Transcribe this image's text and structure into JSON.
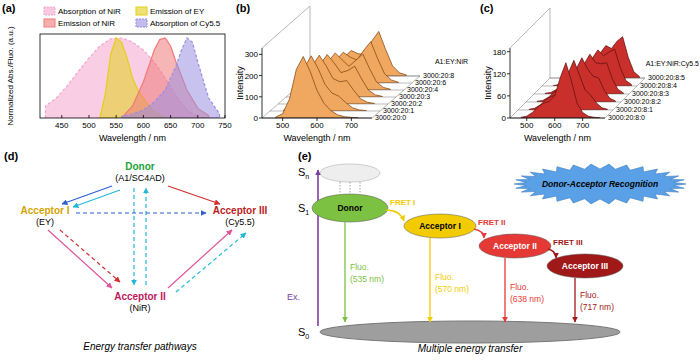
{
  "chart_data": [
    {
      "type": "area",
      "title": "(a)",
      "x_label": "Wavelength / nm",
      "y_label": "Normalized Abs./Fluo. (a.u.)",
      "xlim": [
        410,
        750
      ],
      "xticks": [
        450,
        500,
        550,
        600,
        650,
        700,
        750
      ],
      "ylim": [
        0,
        1.05
      ],
      "tick_labels": "x",
      "legend": "top-left",
      "series": [
        {
          "name": "Absorption of NiR",
          "color": "#f4a6cf",
          "line_style": "dashed",
          "x": [
            420,
            440,
            460,
            480,
            500,
            520,
            540,
            560,
            580,
            600,
            620,
            640,
            660,
            680,
            700
          ],
          "values": [
            0.15,
            0.25,
            0.4,
            0.58,
            0.75,
            0.9,
            0.99,
            1.0,
            0.95,
            0.85,
            0.7,
            0.5,
            0.28,
            0.1,
            0.02
          ]
        },
        {
          "name": "Emission of EY",
          "color": "#e3cf1c",
          "line_style": "solid",
          "x": [
            520,
            530,
            540,
            550,
            560,
            570,
            580,
            590,
            600,
            610,
            620,
            640
          ],
          "values": [
            0.0,
            0.3,
            0.8,
            1.0,
            0.95,
            0.75,
            0.5,
            0.35,
            0.25,
            0.15,
            0.08,
            0.0
          ]
        },
        {
          "name": "Emission of NiR",
          "color": "#ef7a7a",
          "line_style": "solid",
          "x": [
            560,
            580,
            600,
            620,
            630,
            640,
            650,
            660,
            680,
            700,
            720
          ],
          "values": [
            0.0,
            0.15,
            0.45,
            0.85,
            0.98,
            1.0,
            0.9,
            0.7,
            0.35,
            0.12,
            0.03
          ]
        },
        {
          "name": "Absorption of Cy5.5",
          "color": "#9a8fe0",
          "line_style": "dashed",
          "x": [
            560,
            580,
            600,
            620,
            640,
            660,
            670,
            680,
            690,
            700,
            720,
            740
          ],
          "values": [
            0.02,
            0.05,
            0.1,
            0.2,
            0.35,
            0.65,
            0.85,
            1.0,
            0.95,
            0.7,
            0.25,
            0.05
          ]
        }
      ]
    },
    {
      "type": "waterfall",
      "title": "(b)",
      "x_label": "Wavelength / nm",
      "y_label": "Intensity",
      "series_axis_label": "A1:EY:NiR",
      "color": "#f0a860",
      "xlim": [
        440,
        760
      ],
      "xticks": [
        500,
        600,
        700
      ],
      "ylim": [
        0,
        330
      ],
      "yticks": [
        0,
        100,
        200,
        300
      ],
      "x": [
        480,
        500,
        520,
        540,
        560,
        580,
        600,
        620,
        640,
        660,
        680,
        700,
        720
      ],
      "series": [
        {
          "name": "3000:20:0",
          "values": [
            5,
            20,
            90,
            230,
            290,
            220,
            130,
            70,
            35,
            15,
            6,
            3,
            1
          ]
        },
        {
          "name": "3000:20:1",
          "values": [
            5,
            18,
            80,
            205,
            260,
            200,
            125,
            85,
            70,
            40,
            15,
            5,
            2
          ]
        },
        {
          "name": "3000:20:2",
          "values": [
            4,
            16,
            70,
            180,
            230,
            180,
            120,
            105,
            110,
            65,
            25,
            8,
            3
          ]
        },
        {
          "name": "3000:20:3",
          "values": [
            4,
            14,
            60,
            155,
            200,
            160,
            115,
            125,
            145,
            85,
            32,
            10,
            3
          ]
        },
        {
          "name": "3000:20:4",
          "values": [
            3,
            12,
            52,
            135,
            175,
            142,
            112,
            140,
            170,
            100,
            38,
            12,
            4
          ]
        },
        {
          "name": "3000:20:6",
          "values": [
            3,
            10,
            42,
            110,
            145,
            122,
            108,
            155,
            195,
            115,
            44,
            14,
            4
          ]
        },
        {
          "name": "3000:20:8",
          "values": [
            2,
            8,
            35,
            90,
            120,
            105,
            102,
            165,
            210,
            125,
            48,
            15,
            5
          ]
        }
      ]
    },
    {
      "type": "waterfall",
      "title": "(c)",
      "x_label": "Wavelength / nm",
      "y_label": "Intensity",
      "series_axis_label": "A1:EY:NiR:Cy5.5",
      "color": "#c9302c",
      "xlim": [
        440,
        780
      ],
      "xticks": [
        500,
        600,
        700
      ],
      "ylim": [
        0,
        190
      ],
      "yticks": [
        0,
        60,
        120,
        180
      ],
      "x": [
        480,
        500,
        520,
        540,
        560,
        580,
        600,
        620,
        640,
        660,
        680,
        700,
        720,
        740,
        760
      ],
      "series": [
        {
          "name": "3000:20:8:0",
          "values": [
            2,
            5,
            15,
            30,
            40,
            45,
            60,
            110,
            150,
            100,
            40,
            15,
            5,
            2,
            1
          ]
        },
        {
          "name": "3000:20:8:1",
          "values": [
            2,
            5,
            14,
            28,
            37,
            42,
            55,
            100,
            135,
            95,
            55,
            40,
            20,
            6,
            2
          ]
        },
        {
          "name": "3000:20:8:2",
          "values": [
            2,
            4,
            13,
            26,
            34,
            39,
            50,
            90,
            120,
            90,
            70,
            65,
            32,
            10,
            3
          ]
        },
        {
          "name": "3000:20:8:3",
          "values": [
            2,
            4,
            12,
            24,
            32,
            36,
            46,
            82,
            108,
            85,
            82,
            85,
            42,
            13,
            3
          ]
        },
        {
          "name": "3000:20:8:4",
          "values": [
            1,
            4,
            11,
            22,
            30,
            34,
            42,
            75,
            98,
            82,
            92,
            100,
            50,
            15,
            4
          ]
        },
        {
          "name": "3000:20:8:5",
          "values": [
            1,
            3,
            10,
            20,
            28,
            32,
            38,
            68,
            88,
            80,
            100,
            112,
            56,
            17,
            4
          ]
        }
      ]
    }
  ],
  "diagram_d": {
    "label": "(d)",
    "caption": "Energy transfer pathways",
    "nodes": [
      {
        "title": "Donor",
        "subtitle": "(A1/SC4AD)",
        "color": "#22a33a"
      },
      {
        "title": "Acceptor I",
        "subtitle": "(EY)",
        "color": "#d4a300"
      },
      {
        "title": "Acceptor III",
        "subtitle": "(Cy5.5)",
        "color": "#b71c1c"
      },
      {
        "title": "Acceptor II",
        "subtitle": "(NiR)",
        "color": "#c2185b"
      }
    ]
  },
  "diagram_e": {
    "label": "(e)",
    "caption": "Multiple energy transfer",
    "recognition": "Donor-Acceptor Recognition",
    "excitation": "Ex.",
    "states": [
      {
        "symbol": "S",
        "subscript": "n"
      },
      {
        "symbol": "S",
        "subscript": "1"
      },
      {
        "symbol": "S",
        "subscript": "0"
      }
    ],
    "species": [
      {
        "name": "Donor",
        "fluo": "Fluo.",
        "wavelength": "(535 nm)",
        "color": "#7cc142"
      },
      {
        "name": "Acceptor I",
        "fluo": "Fluo.",
        "wavelength": "(570 nm)",
        "color": "#f2cc00"
      },
      {
        "name": "Acceptor II",
        "fluo": "Fluo.",
        "wavelength": "(638 nm)",
        "color": "#e53935"
      },
      {
        "name": "Acceptor III",
        "fluo": "Fluo.",
        "wavelength": "(717 nm)",
        "color": "#a01818"
      }
    ],
    "transfers": [
      "FRET I",
      "FRET II",
      "FRET III"
    ]
  }
}
